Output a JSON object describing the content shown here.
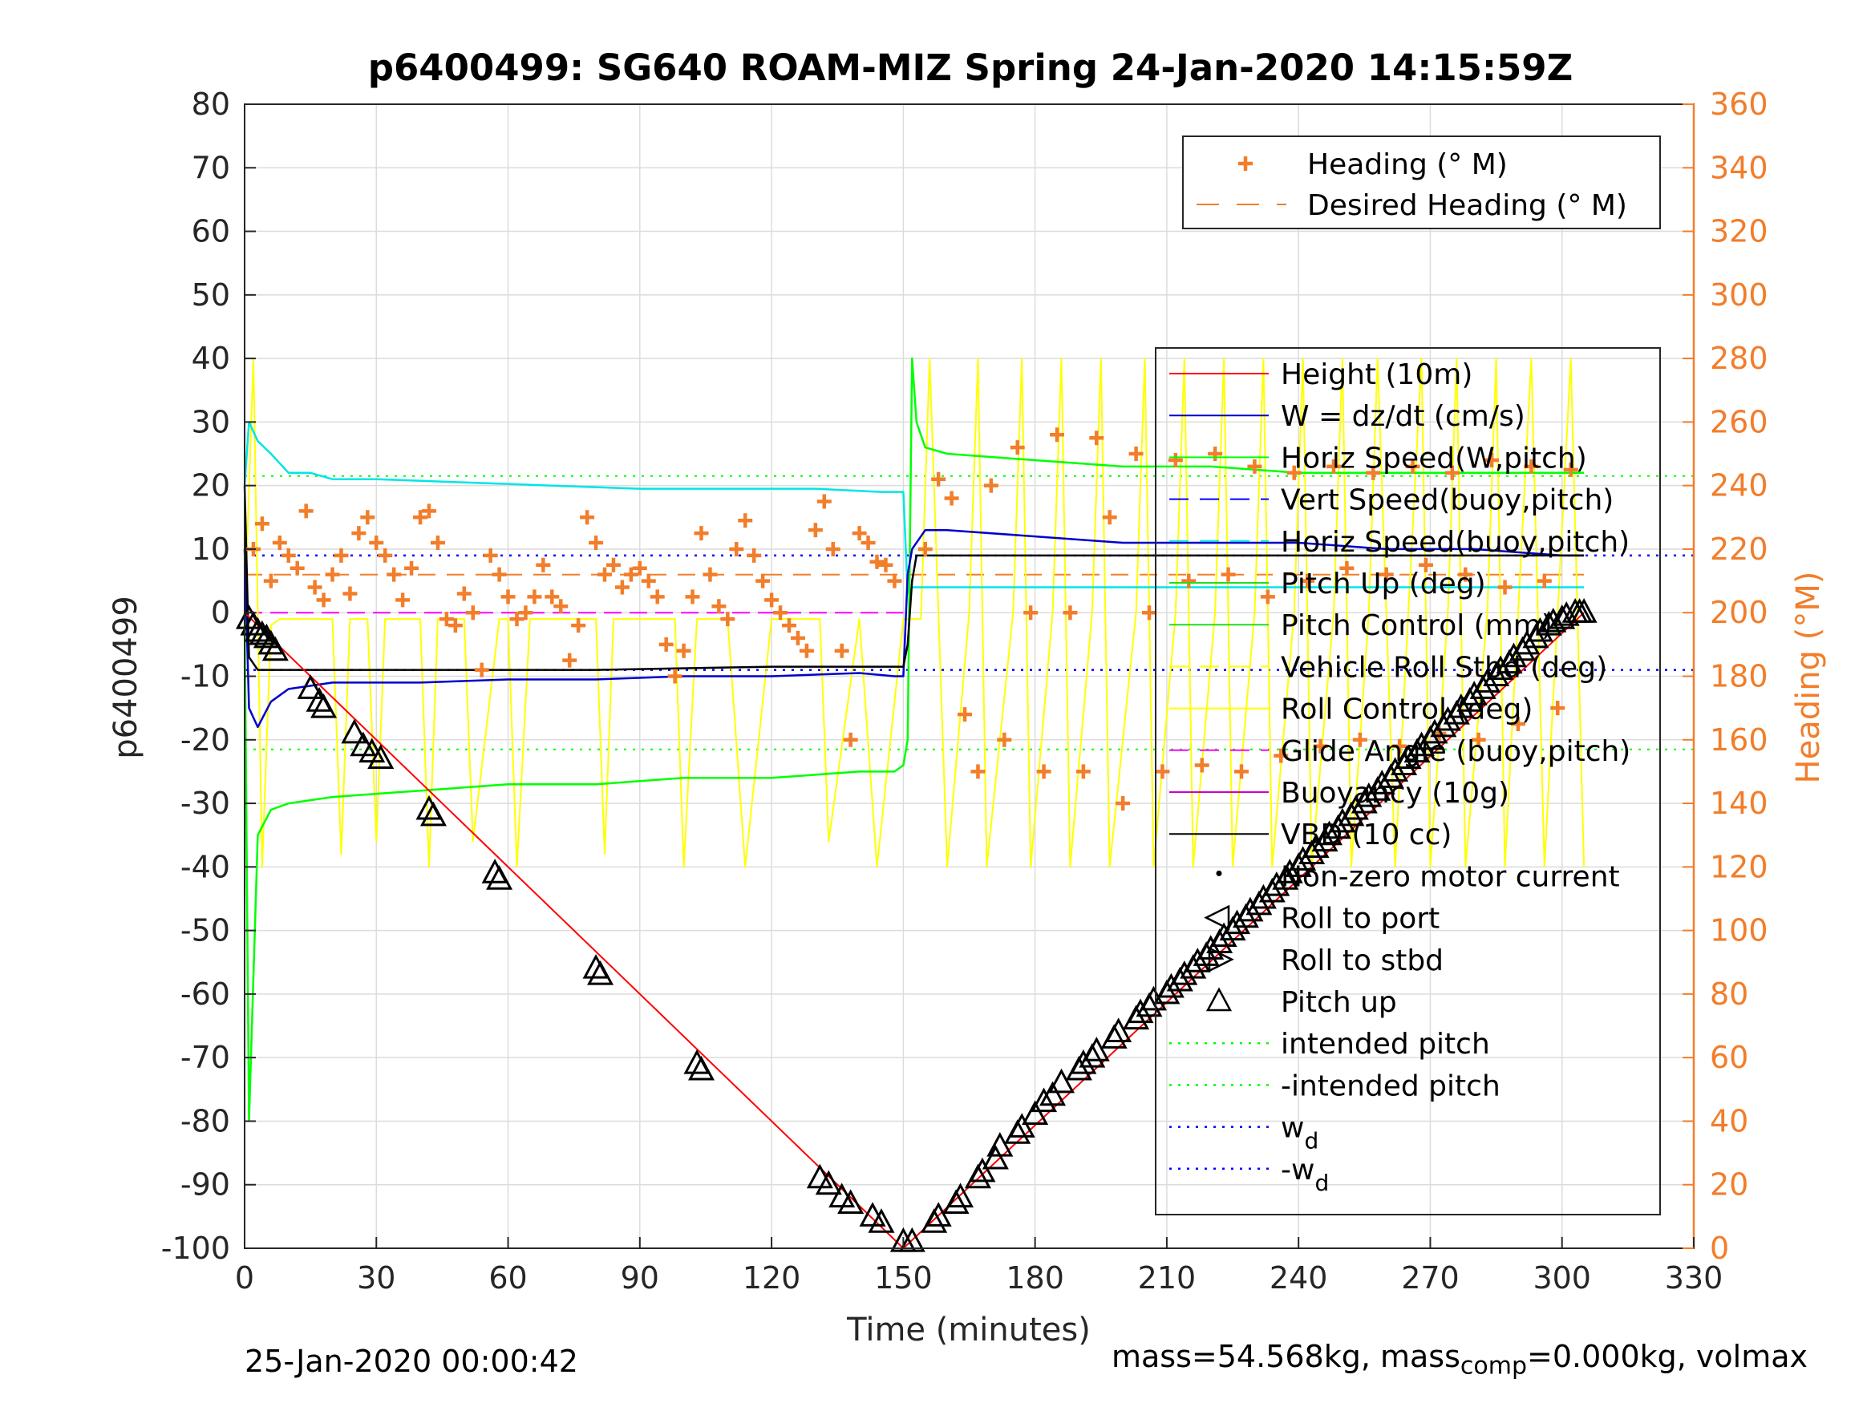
{
  "chart_data": {
    "type": "line",
    "title": "p6400499: SG640 ROAM-MIZ Spring 24-Jan-2020 14:15:59Z",
    "xlabel": "Time (minutes)",
    "ylabel_left": "p6400499",
    "ylabel_right": "Heading (°M)",
    "xlim": [
      0,
      330
    ],
    "ylim_left": [
      -100,
      80
    ],
    "ylim_right": [
      0,
      360
    ],
    "x_ticks": [
      "0",
      "30",
      "60",
      "90",
      "120",
      "150",
      "180",
      "210",
      "240",
      "270",
      "300",
      "330"
    ],
    "y_ticks_left": [
      "80",
      "70",
      "60",
      "50",
      "40",
      "30",
      "20",
      "10",
      "0",
      "-10",
      "-20",
      "-30",
      "-40",
      "-50",
      "-60",
      "-70",
      "-80",
      "-90",
      "-100"
    ],
    "y_ticks_right": [
      "360",
      "340",
      "320",
      "300",
      "280",
      "260",
      "240",
      "220",
      "200",
      "180",
      "160",
      "140",
      "120",
      "100",
      "80",
      "60",
      "40",
      "20",
      "0"
    ],
    "grid": true,
    "footer_left": "25-Jan-2020 00:00:42",
    "footer_right_parts": [
      "mass=54.568kg, mass",
      "comp",
      "=0.000kg, volmax"
    ],
    "colors": {
      "heading": "#f27d2a",
      "height": "#ff0000",
      "w": "#0000cc",
      "horiz_speed_w": "#00ff00",
      "vert_speed_buoy": "#0000ff",
      "horiz_speed_buoy": "#00e5e5",
      "pitch_up": "#22dd22",
      "pitch_control": "#22dd22",
      "roll": "#ffff00",
      "glide_angle": "#ff00ff",
      "buoyancy": "#cc00cc",
      "vbd": "#000000",
      "intended_pitch": "#00ff00",
      "wd": "#0000ff",
      "right_axis": "#f27d2a"
    },
    "legend_top": {
      "position": "top-right",
      "entries": [
        "Heading (° M)",
        "Desired Heading (° M)"
      ]
    },
    "legend_main": {
      "position": "right",
      "entries": [
        "Height (10m)",
        "W = dz/dt (cm/s)",
        "Horiz Speed(W,pitch)",
        "Vert Speed(buoy,pitch)",
        "Horiz Speed(buoy,pitch)",
        "Pitch Up (deg)",
        "Pitch Control (mm)",
        "Vehicle Roll Stbd (deg)",
        "Roll Control (deg)",
        "Glide Angle (buoy,pitch)",
        "Buoyancy (10g)",
        "VBD (10 cc)",
        "Non-zero motor current",
        "Roll to port",
        "Roll to stbd",
        "Pitch up",
        "intended pitch",
        "-intended pitch",
        "w",
        "-w"
      ],
      "subscripts": {
        "18": "d",
        "19": "d"
      }
    },
    "series": [
      {
        "name": "Height (10m)",
        "x": [
          0,
          150,
          305
        ],
        "y": [
          0,
          -100,
          0
        ]
      },
      {
        "name": "Pitch up",
        "x": [
          1,
          2,
          3,
          4,
          5,
          6,
          7,
          15,
          17,
          18,
          25,
          27,
          29,
          31,
          42,
          43,
          57,
          58,
          80,
          81,
          103,
          104,
          131,
          133,
          136,
          138,
          143,
          145,
          150,
          152,
          157,
          158,
          162,
          163,
          167,
          168,
          171,
          172,
          176,
          177,
          180,
          182,
          184,
          186,
          190,
          191,
          193,
          194,
          198,
          199,
          203,
          204,
          206,
          207,
          210,
          211,
          213,
          214,
          216,
          217,
          219,
          220,
          222,
          223,
          225,
          226,
          228,
          229,
          231,
          232,
          234,
          235,
          237,
          238,
          240,
          241,
          243,
          244,
          246,
          247,
          249,
          250,
          252,
          253,
          255,
          256,
          258,
          259,
          261,
          262,
          264,
          265,
          267,
          268,
          270,
          271,
          273,
          274,
          276,
          277,
          279,
          280,
          282,
          283,
          285,
          286,
          288,
          289,
          291,
          292,
          294,
          295,
          297,
          298,
          300,
          301,
          303,
          304,
          305
        ],
        "y": [
          -1,
          -2,
          -3,
          -3.5,
          -4,
          -5,
          -6,
          -12,
          -14,
          -15,
          -19,
          -21,
          -22,
          -23,
          -31,
          -32,
          -41,
          -42,
          -56,
          -57,
          -71,
          -72,
          -89,
          -90,
          -92,
          -93,
          -95,
          -96,
          -99,
          -99,
          -96,
          -95,
          -93,
          -92,
          -89,
          -88,
          -86,
          -84,
          -82,
          -81,
          -79,
          -77,
          -76,
          -74,
          -72,
          -71,
          -70,
          -69,
          -67,
          -66,
          -64,
          -63,
          -62,
          -61,
          -60,
          -59,
          -58,
          -57,
          -56,
          -55,
          -54,
          -53,
          -52,
          -51,
          -50,
          -49,
          -48,
          -47,
          -46,
          -45,
          -44,
          -43,
          -42,
          -41,
          -40,
          -39,
          -38,
          -37,
          -36,
          -35,
          -34,
          -33,
          -32,
          -31,
          -30,
          -29,
          -28,
          -27,
          -26,
          -25,
          -24,
          -23,
          -22,
          -21,
          -20,
          -19,
          -18,
          -17,
          -16,
          -15,
          -14,
          -13,
          -12,
          -11,
          -10,
          -9,
          -8,
          -7,
          -6,
          -5,
          -4,
          -3,
          -2,
          -1.5,
          -1,
          -0.5,
          0,
          0,
          0
        ]
      },
      {
        "name": "Heading (° M)",
        "x": [
          2,
          4,
          6,
          8,
          10,
          12,
          14,
          16,
          18,
          20,
          22,
          24,
          26,
          28,
          30,
          32,
          34,
          36,
          38,
          40,
          42,
          44,
          46,
          48,
          50,
          52,
          54,
          56,
          58,
          60,
          62,
          64,
          66,
          68,
          70,
          72,
          74,
          76,
          78,
          80,
          82,
          84,
          86,
          88,
          90,
          92,
          94,
          96,
          98,
          100,
          102,
          104,
          106,
          108,
          110,
          112,
          114,
          116,
          118,
          120,
          122,
          124,
          126,
          128,
          130,
          132,
          134,
          136,
          138,
          140,
          142,
          144,
          146,
          148,
          155,
          158,
          161,
          164,
          167,
          170,
          173,
          176,
          179,
          182,
          185,
          188,
          191,
          194,
          197,
          200,
          203,
          206,
          209,
          212,
          215,
          218,
          221,
          224,
          227,
          230,
          233,
          236,
          239,
          242,
          245,
          248,
          251,
          254,
          257,
          260,
          263,
          266,
          269,
          272,
          275,
          278,
          281,
          284,
          287,
          290,
          293,
          296,
          299,
          302
        ],
        "y": [
          220,
          228,
          210,
          222,
          218,
          214,
          232,
          208,
          204,
          212,
          218,
          206,
          225,
          230,
          222,
          218,
          212,
          204,
          214,
          230,
          232,
          222,
          198,
          196,
          206,
          200,
          182,
          218,
          212,
          205,
          198,
          200,
          205,
          215,
          205,
          202,
          185,
          196,
          230,
          222,
          212,
          215,
          208,
          212,
          214,
          210,
          205,
          190,
          180,
          188,
          205,
          225,
          212,
          202,
          198,
          220,
          229,
          218,
          210,
          204,
          200,
          196,
          192,
          188,
          226,
          235,
          220,
          188,
          160,
          225,
          222,
          216,
          215,
          210,
          220,
          242,
          236,
          168,
          150,
          240,
          160,
          252,
          200,
          150,
          256,
          200,
          150,
          255,
          230,
          140,
          250,
          200,
          150,
          248,
          210,
          152,
          250,
          212,
          150,
          246,
          205,
          155,
          244,
          210,
          158,
          246,
          214,
          160,
          244,
          212,
          158,
          246,
          215,
          162,
          244,
          212,
          160,
          248,
          208,
          165,
          246,
          210,
          170,
          245
        ]
      },
      {
        "name": "Desired Heading (° M)",
        "x": [
          0,
          150,
          150,
          305
        ],
        "y": [
          212,
          212,
          212,
          212
        ]
      },
      {
        "name": "W = dz/dt (cm/s)",
        "x": [
          0,
          1,
          3,
          6,
          10,
          20,
          40,
          60,
          80,
          100,
          120,
          140,
          148,
          150,
          151,
          152,
          155,
          160,
          180,
          200,
          220,
          240,
          260,
          280,
          300,
          305
        ],
        "y": [
          10,
          -15,
          -18,
          -14,
          -12,
          -11,
          -11,
          -10.5,
          -10.5,
          -10,
          -10,
          -9.5,
          -10,
          -10,
          6,
          10,
          13,
          13,
          12,
          11,
          11,
          11,
          10,
          10,
          9,
          9
        ]
      },
      {
        "name": "Horiz Speed(W,pitch)",
        "x": [
          0,
          1,
          3,
          6,
          10,
          20,
          40,
          60,
          80,
          100,
          120,
          140,
          148,
          150,
          151,
          152,
          153,
          155,
          160,
          180,
          200,
          220,
          240,
          260,
          280,
          300,
          305
        ],
        "y": [
          0,
          -80,
          -35,
          -31,
          -30,
          -29,
          -28,
          -27,
          -27,
          -26,
          -26,
          -25,
          -25,
          -24,
          -20,
          40,
          30,
          26,
          25,
          24,
          23,
          23,
          22,
          22,
          22,
          22,
          22
        ]
      },
      {
        "name": "Horiz Speed(buoy,pitch)",
        "x": [
          0,
          1,
          3,
          6,
          10,
          15,
          20,
          30,
          50,
          70,
          90,
          110,
          130,
          145,
          150,
          151,
          152,
          160,
          180,
          200,
          240,
          280,
          305
        ],
        "y": [
          20,
          30,
          27,
          25,
          22,
          22,
          21,
          21,
          20.5,
          20,
          19.5,
          19.5,
          19.5,
          19,
          19,
          3,
          4,
          4,
          4,
          4,
          4,
          4,
          4
        ]
      },
      {
        "name": "VBD (10 cc)",
        "x": [
          0,
          1,
          3,
          10,
          40,
          80,
          120,
          150,
          151,
          152,
          153,
          160,
          200,
          240,
          280,
          300,
          305
        ],
        "y": [
          20,
          -7,
          -9,
          -9,
          -9,
          -9,
          -8.5,
          -8.5,
          -5,
          5,
          9,
          9,
          9,
          9,
          9,
          9,
          9
        ]
      },
      {
        "name": "intended pitch",
        "x": [
          0,
          330
        ],
        "y": [
          21.5,
          21.5
        ]
      },
      {
        "name": "-intended pitch",
        "x": [
          0,
          330
        ],
        "y": [
          -21.5,
          -21.5
        ]
      },
      {
        "name": "w",
        "x": [
          0,
          330
        ],
        "y": [
          9,
          9
        ]
      },
      {
        "name": "-w",
        "x": [
          0,
          330
        ],
        "y": [
          -9,
          -9
        ]
      },
      {
        "name": "Glide Angle (buoy,pitch)",
        "x": [
          0,
          150
        ],
        "y": [
          0,
          0
        ]
      },
      {
        "name": "Roll Control (deg)",
        "x": [
          0,
          2,
          4,
          6,
          8,
          20,
          22,
          24,
          28,
          30,
          32,
          34,
          40,
          42,
          44,
          48,
          50,
          52,
          58,
          60,
          62,
          65,
          70,
          72,
          80,
          82,
          84,
          96,
          98,
          100,
          103,
          105,
          110,
          114,
          120,
          128,
          131,
          133,
          140,
          144,
          150,
          152,
          154,
          156,
          160,
          165,
          167,
          169,
          175,
          177,
          179,
          184,
          186,
          188,
          193,
          195,
          197,
          203,
          205,
          207,
          212,
          214,
          216,
          221,
          223,
          225,
          230,
          232,
          234,
          239,
          241,
          243,
          248,
          250,
          252,
          256,
          258,
          262,
          265,
          268,
          270,
          274,
          276,
          278,
          283,
          285,
          287,
          290,
          293,
          296,
          299,
          302,
          305
        ],
        "y": [
          -1,
          40,
          -40,
          -2,
          -1,
          -1,
          -38,
          -1,
          -1,
          -36,
          -1,
          -1,
          -1,
          -40,
          -1,
          -1,
          -1,
          -36,
          -1,
          -1,
          -40,
          -1,
          -1,
          -1,
          -1,
          -38,
          -1,
          -1,
          -1,
          -40,
          -1,
          -1,
          -1,
          -40,
          -1,
          -1,
          -1,
          -36,
          -1,
          -40,
          -1,
          -1,
          -1,
          40,
          -40,
          0,
          40,
          -40,
          0,
          40,
          -40,
          0,
          40,
          -40,
          0,
          40,
          -40,
          0,
          40,
          -40,
          0,
          40,
          -40,
          0,
          40,
          -40,
          0,
          40,
          -40,
          0,
          40,
          -40,
          0,
          40,
          -40,
          0,
          40,
          -40,
          0,
          40,
          -40,
          0,
          40,
          -40,
          0,
          40,
          -40,
          0,
          40,
          -40,
          0,
          40,
          -40
        ]
      }
    ]
  }
}
